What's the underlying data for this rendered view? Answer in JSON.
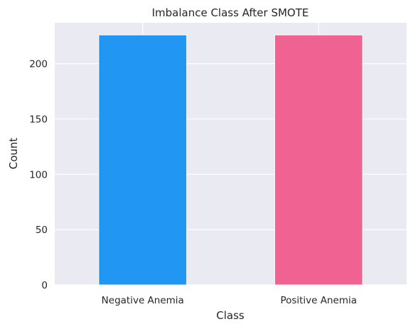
{
  "chart_data": {
    "type": "bar",
    "title": "Imbalance Class After SMOTE",
    "xlabel": "Class",
    "ylabel": "Count",
    "categories": [
      "Negative Anemia",
      "Positive Anemia"
    ],
    "values": [
      226,
      226
    ],
    "colors": [
      "#2196f3",
      "#f06292"
    ],
    "ylim": [
      0,
      237
    ],
    "yticks": [
      0,
      50,
      100,
      150,
      200
    ],
    "grid": true,
    "legend": "none",
    "background_color": "#eaeaf2",
    "grid_color": "#ffffff"
  }
}
